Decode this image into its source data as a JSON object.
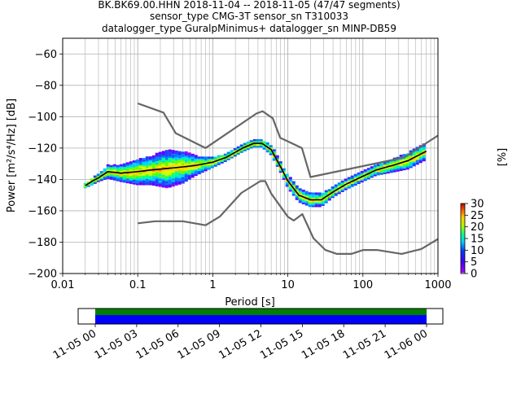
{
  "header": {
    "title_line1": "BK.BK69.00.HHN   2018-11-04 -- 2018-11-05  (47/47 segments)",
    "title_line2": "sensor_type CMG-3T sensor_sn T310033",
    "title_line3": "datalogger_type GuralpMinimus+ datalogger_sn MINP-DB59"
  },
  "chart_data": [
    {
      "type": "ppsd-heatmap",
      "xlabel": "Period [s]",
      "ylabel": "Power [m²/s⁴/Hz] [dB]",
      "xscale": "log",
      "xlim": [
        0.01,
        1000
      ],
      "ylim": [
        -200,
        -50
      ],
      "x_ticks": [
        0.01,
        0.1,
        1,
        10,
        100,
        1000
      ],
      "x_tick_labels": [
        "0.01",
        "0.1",
        "1",
        "10",
        "100",
        "1000"
      ],
      "y_ticks": [
        -200,
        -180,
        -160,
        -140,
        -120,
        -100,
        -80,
        -60
      ],
      "y_tick_labels": [
        "−200",
        "−180",
        "−160",
        "−140",
        "−120",
        "−100",
        "−80",
        "−60"
      ],
      "grid": true,
      "series": [
        {
          "name": "NHNM",
          "color": "#666666",
          "x": [
            0.1,
            0.22,
            0.32,
            0.8,
            3.8,
            4.6,
            6.3,
            7.9,
            15.4,
            20,
            354.8,
            1000
          ],
          "y": [
            -91.5,
            -97.4,
            -110.5,
            -120,
            -98,
            -96.5,
            -101,
            -113.5,
            -120,
            -138.5,
            -126,
            -112
          ]
        },
        {
          "name": "NLNM",
          "color": "#666666",
          "x": [
            0.1,
            0.17,
            0.4,
            0.8,
            1.24,
            2.4,
            4.3,
            5,
            6,
            10,
            12,
            15.6,
            21.9,
            31.6,
            45,
            70,
            101,
            154,
            328,
            600,
            1000
          ],
          "y": [
            -168,
            -166.7,
            -166.7,
            -169.2,
            -163.7,
            -148.6,
            -141.1,
            -141.1,
            -149,
            -163.8,
            -166.2,
            -162.1,
            -177.5,
            -185,
            -187.5,
            -187.5,
            -185,
            -185,
            -187.5,
            -184.4,
            -178
          ]
        },
        {
          "name": "mean",
          "color": "#000000",
          "x": [
            0.02,
            0.025,
            0.03,
            0.04,
            0.06,
            0.1,
            0.15,
            0.25,
            0.4,
            0.6,
            1,
            1.5,
            2.5,
            3.5,
            4.5,
            6,
            8,
            10,
            14,
            20,
            28,
            40,
            60,
            100,
            150,
            250,
            400,
            700
          ],
          "y": [
            -144,
            -141,
            -139,
            -135,
            -136,
            -135,
            -134,
            -133,
            -132,
            -131,
            -129,
            -126,
            -120,
            -117,
            -117,
            -121,
            -132,
            -141,
            -150,
            -153,
            -153,
            -148,
            -143,
            -138,
            -134,
            -131,
            -128,
            -122
          ]
        }
      ],
      "heatmap_band": {
        "x": [
          0.02,
          0.025,
          0.03,
          0.04,
          0.06,
          0.1,
          0.15,
          0.25,
          0.4,
          0.6,
          1,
          1.5,
          2.5,
          3.5,
          4.5,
          6,
          8,
          10,
          14,
          20,
          28,
          40,
          60,
          100,
          150,
          250,
          400,
          700
        ],
        "spread": [
          1,
          2,
          2,
          4,
          5,
          8,
          9,
          12,
          10,
          6,
          3,
          2,
          2,
          2,
          2,
          3,
          3,
          4,
          4,
          4,
          4,
          3,
          3,
          3,
          3,
          4,
          5,
          5
        ]
      },
      "colorbar": {
        "label": "[%]",
        "ticks": [
          0,
          5,
          10,
          15,
          20,
          25,
          30
        ],
        "range": [
          0,
          30
        ]
      }
    },
    {
      "type": "timeline",
      "x_tick_labels": [
        "11-05 00",
        "11-05 03",
        "11-05 06",
        "11-05 09",
        "11-05 12",
        "11-05 15",
        "11-05 18",
        "11-05 21",
        "11-06 00"
      ],
      "coverage_start": 0,
      "coverage_end": 1,
      "bar_colors": [
        "#008000",
        "#0000ff"
      ]
    }
  ]
}
